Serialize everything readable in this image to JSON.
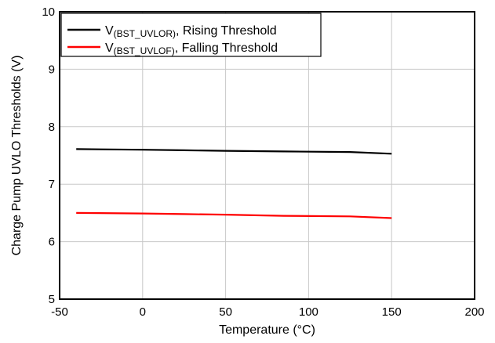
{
  "chart_data": {
    "type": "line",
    "xlabel": "Temperature (°C)",
    "ylabel": "Charge Pump UVLO Thresholds (V)",
    "xlim": [
      -50,
      200
    ],
    "ylim": [
      5,
      10
    ],
    "xticks": [
      -50,
      0,
      50,
      100,
      150,
      200
    ],
    "yticks": [
      5,
      6,
      7,
      8,
      9,
      10
    ],
    "grid": true,
    "legend_position": "top-left",
    "series": [
      {
        "name_main": "V",
        "name_sub": "(BST_UVLOR)",
        "name_rest": ", Rising Threshold",
        "color": "#000000",
        "x": [
          -40,
          0,
          25,
          50,
          85,
          125,
          150
        ],
        "y": [
          7.61,
          7.6,
          7.59,
          7.58,
          7.57,
          7.56,
          7.53
        ]
      },
      {
        "name_main": "V",
        "name_sub": "(BST_UVLOF)",
        "name_rest": ", Falling Threshold",
        "color": "#ff0000",
        "x": [
          -40,
          0,
          25,
          50,
          85,
          125,
          150
        ],
        "y": [
          6.5,
          6.49,
          6.48,
          6.47,
          6.45,
          6.44,
          6.41
        ]
      }
    ]
  }
}
